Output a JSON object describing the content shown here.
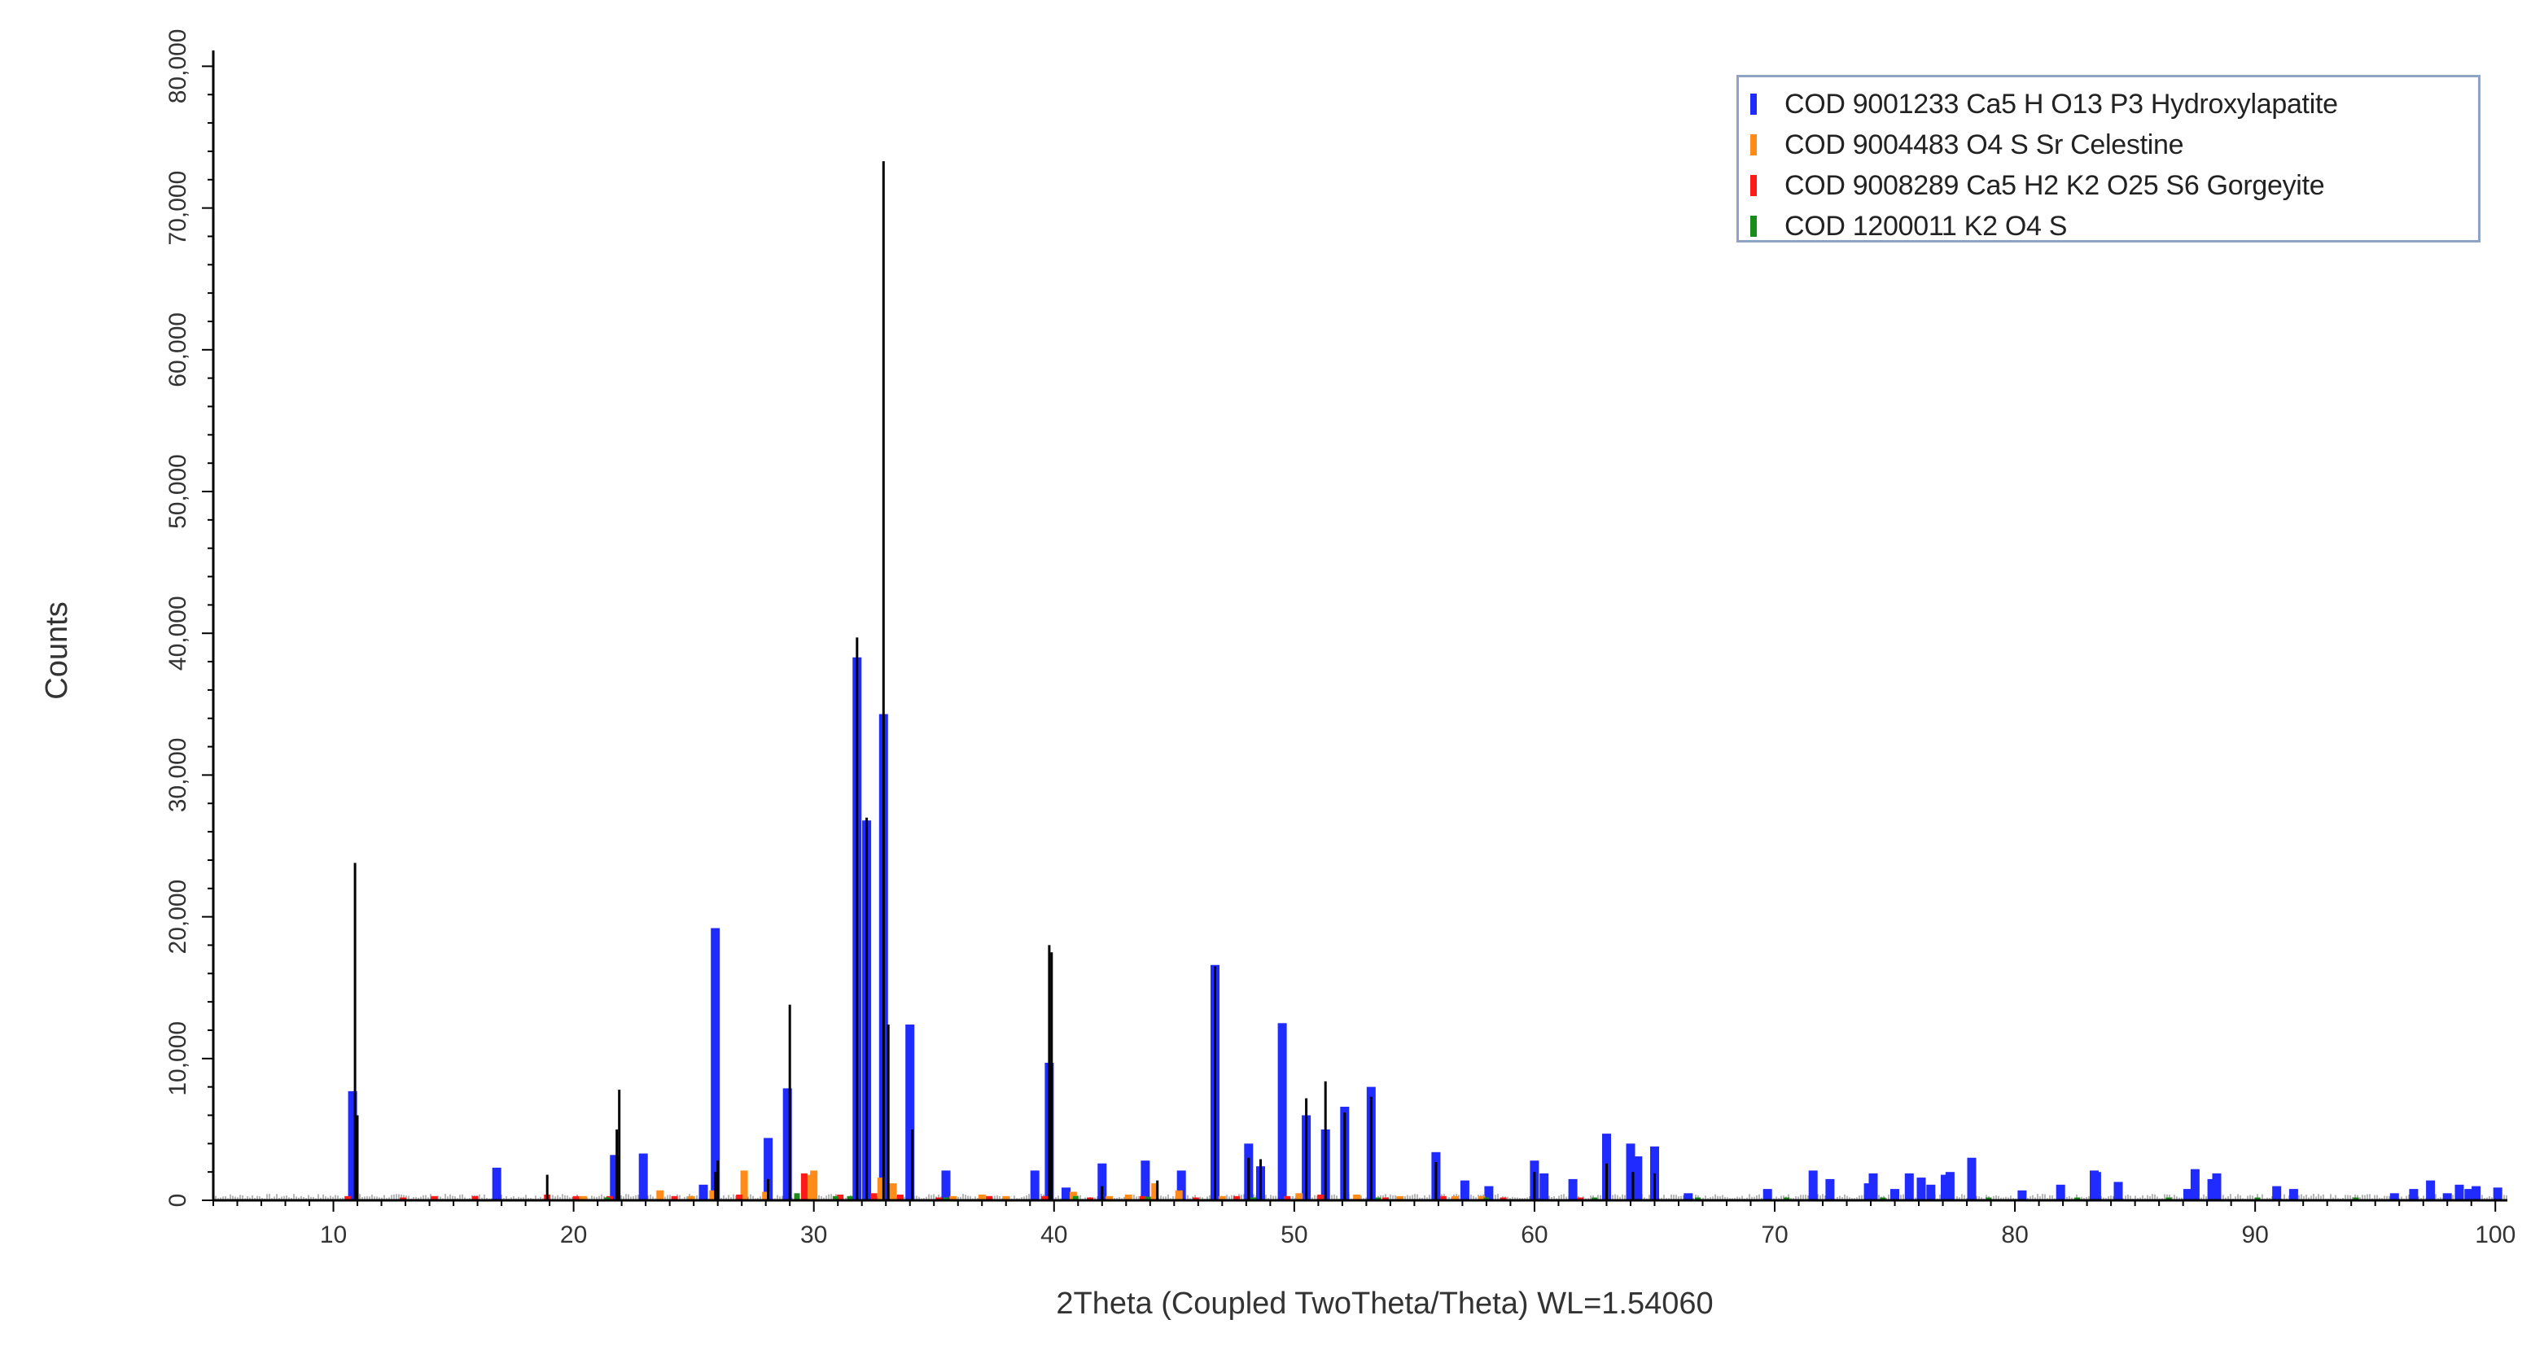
{
  "chart_data": {
    "type": "bar",
    "title": "",
    "xlabel": "2Theta (Coupled TwoTheta/Theta) WL=1.54060",
    "ylabel": "Counts",
    "xlim": [
      5,
      100.5
    ],
    "ylim": [
      0,
      81000
    ],
    "x_ticks": [
      10,
      20,
      30,
      40,
      50,
      60,
      70,
      80,
      90,
      100
    ],
    "y_ticks": [
      0,
      10000,
      20000,
      30000,
      40000,
      50000,
      60000,
      70000,
      80000
    ],
    "x_tick_labels": [
      "10",
      "20",
      "30",
      "40",
      "50",
      "60",
      "70",
      "80",
      "90",
      "100"
    ],
    "y_tick_labels": [
      "0",
      "10,000",
      "20,000",
      "30,000",
      "40,000",
      "50,000",
      "60,000",
      "70,000",
      "80,000"
    ],
    "grid": false,
    "legend_position": "top-right",
    "measured": {
      "color": "#000000",
      "points": [
        [
          10.9,
          23800
        ],
        [
          11.0,
          6000
        ],
        [
          18.9,
          1800
        ],
        [
          21.8,
          5000
        ],
        [
          21.9,
          7800
        ],
        [
          25.9,
          2000
        ],
        [
          26.0,
          2800
        ],
        [
          28.1,
          1500
        ],
        [
          29.0,
          13800
        ],
        [
          31.8,
          39700
        ],
        [
          32.2,
          27000
        ],
        [
          32.9,
          73300
        ],
        [
          33.1,
          12400
        ],
        [
          34.1,
          5000
        ],
        [
          39.8,
          18000
        ],
        [
          39.9,
          17500
        ],
        [
          42.0,
          1000
        ],
        [
          44.3,
          1400
        ],
        [
          46.7,
          16500
        ],
        [
          48.1,
          3000
        ],
        [
          48.6,
          2900
        ],
        [
          50.5,
          7200
        ],
        [
          51.3,
          8400
        ],
        [
          52.1,
          6200
        ],
        [
          53.2,
          7300
        ],
        [
          55.9,
          2700
        ],
        [
          60.0,
          2000
        ],
        [
          63.0,
          2600
        ],
        [
          64.1,
          2000
        ],
        [
          65.0,
          1900
        ]
      ]
    },
    "series": [
      {
        "name": "COD 9001233 Ca5 H O13 P3 Hydroxylapatite",
        "color": "#1f2bff",
        "peaks": [
          [
            10.8,
            7700
          ],
          [
            16.8,
            2300
          ],
          [
            21.7,
            3200
          ],
          [
            22.9,
            3300
          ],
          [
            25.4,
            1100
          ],
          [
            25.9,
            19200
          ],
          [
            28.1,
            4400
          ],
          [
            28.9,
            7900
          ],
          [
            31.8,
            38300
          ],
          [
            32.2,
            26800
          ],
          [
            32.9,
            34300
          ],
          [
            34.0,
            12400
          ],
          [
            35.5,
            2100
          ],
          [
            39.2,
            2100
          ],
          [
            39.8,
            9700
          ],
          [
            40.5,
            900
          ],
          [
            42.0,
            2600
          ],
          [
            43.8,
            2800
          ],
          [
            45.3,
            2100
          ],
          [
            46.7,
            16600
          ],
          [
            48.1,
            4000
          ],
          [
            48.6,
            2400
          ],
          [
            49.5,
            12500
          ],
          [
            50.5,
            6000
          ],
          [
            51.3,
            5000
          ],
          [
            52.1,
            6600
          ],
          [
            53.2,
            8000
          ],
          [
            55.9,
            3400
          ],
          [
            57.1,
            1400
          ],
          [
            58.1,
            1000
          ],
          [
            60.0,
            2800
          ],
          [
            60.4,
            1900
          ],
          [
            61.6,
            1500
          ],
          [
            63.0,
            4700
          ],
          [
            64.0,
            4000
          ],
          [
            64.3,
            3100
          ],
          [
            65.0,
            3800
          ],
          [
            66.4,
            500
          ],
          [
            69.7,
            800
          ],
          [
            71.6,
            2100
          ],
          [
            72.3,
            1500
          ],
          [
            73.9,
            1200
          ],
          [
            74.1,
            1900
          ],
          [
            75.0,
            800
          ],
          [
            75.6,
            1900
          ],
          [
            76.1,
            1600
          ],
          [
            76.5,
            1100
          ],
          [
            77.1,
            1800
          ],
          [
            77.3,
            2000
          ],
          [
            78.2,
            3000
          ],
          [
            80.3,
            700
          ],
          [
            81.9,
            1100
          ],
          [
            83.3,
            2100
          ],
          [
            83.4,
            2000
          ],
          [
            84.3,
            1300
          ],
          [
            87.2,
            800
          ],
          [
            87.5,
            2200
          ],
          [
            88.2,
            1500
          ],
          [
            88.4,
            1900
          ],
          [
            90.9,
            1000
          ],
          [
            91.6,
            800
          ],
          [
            95.8,
            500
          ],
          [
            96.6,
            800
          ],
          [
            97.3,
            1400
          ],
          [
            98.0,
            500
          ],
          [
            98.5,
            1100
          ],
          [
            98.9,
            800
          ],
          [
            99.2,
            1000
          ],
          [
            100.1,
            900
          ]
        ]
      },
      {
        "name": "COD 9004483 O4 S Sr Celestine",
        "color": "#ff8c1a",
        "peaks": [
          [
            20.4,
            300
          ],
          [
            23.6,
            700
          ],
          [
            24.9,
            300
          ],
          [
            25.8,
            700
          ],
          [
            27.1,
            2100
          ],
          [
            28.0,
            600
          ],
          [
            29.8,
            1800
          ],
          [
            30.0,
            2100
          ],
          [
            32.8,
            1600
          ],
          [
            33.3,
            1200
          ],
          [
            35.8,
            300
          ],
          [
            37.0,
            400
          ],
          [
            38.0,
            300
          ],
          [
            40.8,
            600
          ],
          [
            42.3,
            300
          ],
          [
            43.1,
            400
          ],
          [
            44.2,
            1200
          ],
          [
            45.2,
            700
          ],
          [
            47.0,
            300
          ],
          [
            50.2,
            500
          ],
          [
            52.6,
            400
          ],
          [
            54.4,
            300
          ],
          [
            56.7,
            300
          ],
          [
            57.8,
            300
          ]
        ]
      },
      {
        "name": "COD 9008289 Ca5 H2 K2 O25 S6 Gorgeyite",
        "color": "#ff1a1a",
        "peaks": [
          [
            10.6,
            300
          ],
          [
            12.9,
            200
          ],
          [
            14.2,
            300
          ],
          [
            15.9,
            300
          ],
          [
            18.9,
            400
          ],
          [
            20.1,
            300
          ],
          [
            21.5,
            300
          ],
          [
            24.2,
            300
          ],
          [
            26.9,
            400
          ],
          [
            29.6,
            1900
          ],
          [
            31.1,
            400
          ],
          [
            32.5,
            500
          ],
          [
            33.6,
            400
          ],
          [
            35.2,
            200
          ],
          [
            37.3,
            300
          ],
          [
            39.6,
            300
          ],
          [
            41.5,
            200
          ],
          [
            43.7,
            300
          ],
          [
            45.9,
            200
          ],
          [
            47.6,
            300
          ],
          [
            49.7,
            300
          ],
          [
            51.1,
            400
          ],
          [
            53.8,
            200
          ],
          [
            56.2,
            300
          ],
          [
            58.7,
            200
          ],
          [
            61.9,
            200
          ]
        ]
      },
      {
        "name": "COD 1200011 K2 O4 S",
        "color": "#1a8c1a",
        "peaks": [
          [
            21.4,
            200
          ],
          [
            29.3,
            500
          ],
          [
            30.9,
            300
          ],
          [
            31.5,
            300
          ],
          [
            35.5,
            200
          ],
          [
            40.9,
            300
          ],
          [
            43.9,
            250
          ],
          [
            48.3,
            200
          ],
          [
            53.5,
            200
          ],
          [
            58.0,
            200
          ],
          [
            62.5,
            200
          ],
          [
            66.8,
            200
          ],
          [
            70.5,
            200
          ],
          [
            74.5,
            200
          ],
          [
            78.9,
            200
          ],
          [
            82.6,
            200
          ],
          [
            86.4,
            200
          ],
          [
            90.1,
            200
          ],
          [
            94.2,
            200
          ]
        ]
      }
    ]
  }
}
